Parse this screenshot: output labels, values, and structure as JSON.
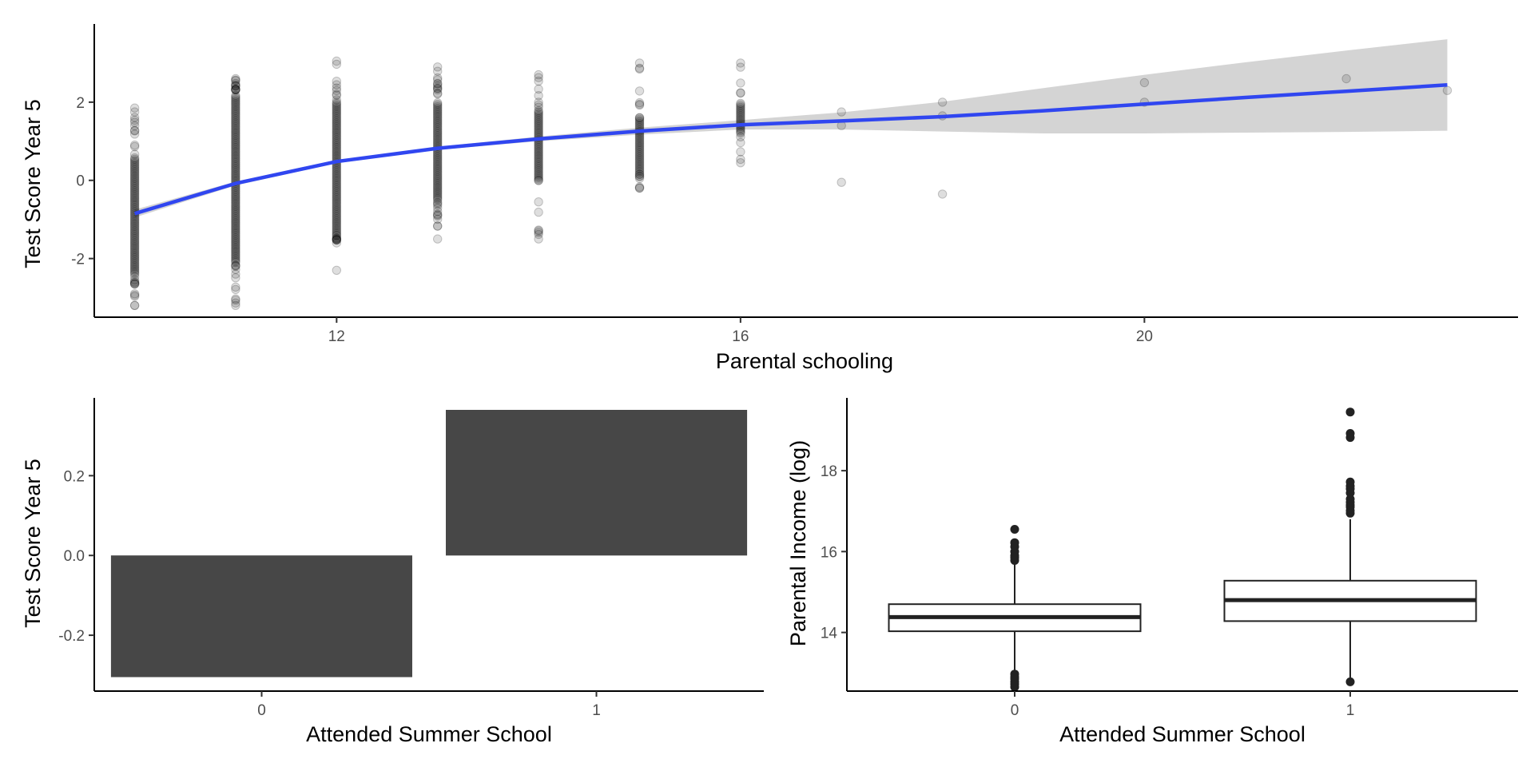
{
  "chart_data": [
    {
      "type": "scatter",
      "xlabel": "Parental schooling",
      "ylabel": "Test Score Year 5",
      "xlim": [
        9.6,
        23.7
      ],
      "ylim": [
        -3.5,
        4.0
      ],
      "x_ticks": [
        12,
        16,
        20
      ],
      "y_ticks": [
        -2,
        0,
        2
      ],
      "x_tick_labels": [
        "12",
        "16",
        "20"
      ],
      "y_tick_labels": [
        "-2",
        "0",
        "2"
      ],
      "grid": false,
      "point_color": "#000000",
      "point_alpha": 0.13,
      "columns": [
        {
          "x": 10,
          "ymin": -3.2,
          "ymax": 1.85,
          "dense_min": -2.4,
          "dense_max": 0.6,
          "n_sparse": 22
        },
        {
          "x": 11,
          "ymin": -3.2,
          "ymax": 2.6,
          "dense_min": -2.1,
          "dense_max": 2.2,
          "n_sparse": 22
        },
        {
          "x": 12,
          "ymin": -1.6,
          "ymax": 3.05,
          "dense_min": -1.4,
          "dense_max": 2.0,
          "n_sparse": 16
        },
        {
          "x": 13,
          "ymin": -1.5,
          "ymax": 2.9,
          "dense_min": -0.5,
          "dense_max": 2.0,
          "n_sparse": 22
        },
        {
          "x": 14,
          "ymin": -1.5,
          "ymax": 2.7,
          "dense_min": 0.0,
          "dense_max": 1.8,
          "n_sparse": 14
        },
        {
          "x": 15,
          "ymin": -0.2,
          "ymax": 3.0,
          "dense_min": 0.2,
          "dense_max": 1.6,
          "n_sparse": 14
        },
        {
          "x": 16,
          "ymin": 0.45,
          "ymax": 3.0,
          "dense_min": 1.2,
          "dense_max": 2.0,
          "n_sparse": 8
        }
      ],
      "points": [
        [
          12,
          -2.3
        ],
        [
          17,
          1.75
        ],
        [
          17,
          1.4
        ],
        [
          17,
          -0.05
        ],
        [
          18,
          2.0
        ],
        [
          18,
          1.65
        ],
        [
          18,
          -0.35
        ],
        [
          20,
          2.5
        ],
        [
          20,
          2.0
        ],
        [
          22,
          2.6
        ],
        [
          23,
          2.3
        ]
      ],
      "smooth": {
        "color": "#3046f0",
        "x": [
          10,
          11,
          12,
          13,
          14,
          15,
          16,
          17,
          18,
          19,
          20,
          21,
          22,
          23
        ],
        "y": [
          -0.85,
          -0.08,
          0.48,
          0.82,
          1.06,
          1.26,
          1.42,
          1.52,
          1.63,
          1.78,
          1.95,
          2.12,
          2.28,
          2.44
        ],
        "ci_lower": [
          -0.95,
          -0.13,
          0.44,
          0.78,
          1.0,
          1.17,
          1.3,
          1.3,
          1.25,
          1.2,
          1.2,
          1.22,
          1.24,
          1.27
        ],
        "ci_upper": [
          -0.75,
          -0.03,
          0.52,
          0.86,
          1.12,
          1.35,
          1.54,
          1.74,
          2.01,
          2.36,
          2.7,
          3.02,
          3.32,
          3.61
        ],
        "ci_color": "#d4d4d4"
      }
    },
    {
      "type": "bar",
      "xlabel": "Attended Summer School",
      "ylabel": "Test Score Year 5",
      "categories": [
        "0",
        "1"
      ],
      "values": [
        -0.305,
        0.365
      ],
      "ylim": [
        -0.34,
        0.395
      ],
      "y_ticks": [
        -0.2,
        0.0,
        0.2
      ],
      "y_tick_labels": [
        "-0.2",
        "0.0",
        "0.2"
      ],
      "bar_color": "#474747",
      "grid": false
    },
    {
      "type": "box",
      "xlabel": "Attended Summer School",
      "ylabel": "Parental Income (log)",
      "categories": [
        "0",
        "1"
      ],
      "boxes": [
        {
          "q1": 14.03,
          "median": 14.38,
          "q3": 14.7,
          "whisker_low": 13.0,
          "whisker_high": 15.7,
          "outliers": [
            15.78,
            15.85,
            15.9,
            16.0,
            16.12,
            16.22,
            16.55,
            12.97,
            12.9,
            12.85,
            12.78,
            12.72,
            12.65
          ]
        },
        {
          "q1": 14.28,
          "median": 14.8,
          "q3": 15.28,
          "whisker_low": 12.78,
          "whisker_high": 16.8,
          "outliers": [
            12.78,
            16.95,
            17.02,
            17.1,
            17.15,
            17.22,
            17.3,
            17.45,
            17.55,
            17.62,
            17.72,
            18.82,
            18.92,
            19.45
          ]
        }
      ],
      "ylim": [
        12.55,
        19.8
      ],
      "y_ticks": [
        14,
        16,
        18
      ],
      "y_tick_labels": [
        "14",
        "16",
        "18"
      ],
      "grid": false
    }
  ]
}
